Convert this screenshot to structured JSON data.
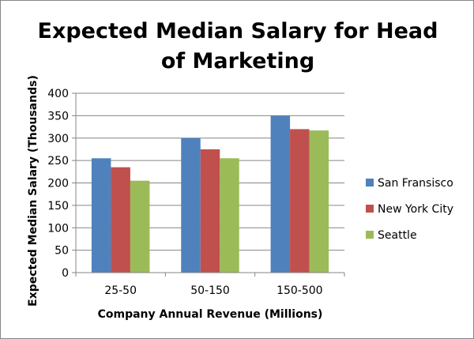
{
  "chart_data": {
    "type": "bar",
    "title": "Expected Median Salary for Head\nof Marketing",
    "xlabel": "Company Annual Revenue (Millions)",
    "ylabel": "Expected Median Salary (Thousands)",
    "categories": [
      "25-50",
      "50-150",
      "150-500"
    ],
    "ylim": [
      0,
      400
    ],
    "yticks": [
      0,
      50,
      100,
      150,
      200,
      250,
      300,
      350,
      400
    ],
    "grid": true,
    "legend_position": "right",
    "series": [
      {
        "name": "San Fransisco",
        "color": "#4F81BD",
        "values": [
          255,
          300,
          350
        ]
      },
      {
        "name": "New York City",
        "color": "#C0504D",
        "values": [
          235,
          275,
          320
        ]
      },
      {
        "name": "Seattle",
        "color": "#9BBB59",
        "values": [
          205,
          255,
          317
        ]
      }
    ]
  }
}
